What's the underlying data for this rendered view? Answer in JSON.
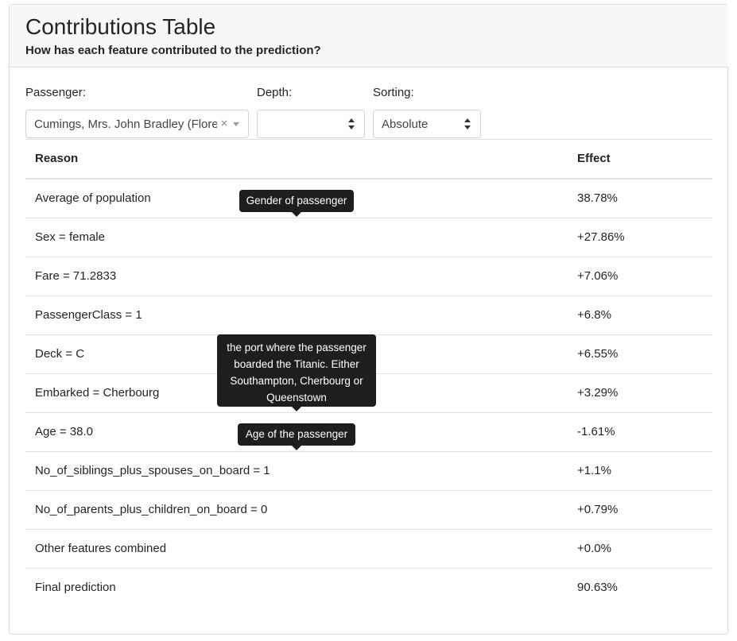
{
  "header": {
    "title": "Contributions Table",
    "subtitle": "How has each feature contributed to the prediction?"
  },
  "controls": [
    {
      "label": "Passenger:",
      "value": "Cumings, Mrs. John Bradley (Flore…"
    },
    {
      "label": "Depth:"
    },
    {
      "label": "Sorting:",
      "value": "Absolute"
    }
  ],
  "table": {
    "header": [
      "Reason",
      "Effect"
    ],
    "rows": [
      [
        "Average of population",
        "38.78%"
      ],
      [
        "Sex = female",
        "+27.86%"
      ],
      [
        "Fare = 71.2833",
        "+7.06%"
      ],
      [
        "PassengerClass = 1",
        "+6.8%"
      ],
      [
        "Deck = C",
        "+6.55%"
      ],
      [
        "Embarked = Cherbourg",
        "+3.29%"
      ],
      [
        "Age = 38.0",
        "-1.61%"
      ],
      [
        "No_of_siblings_plus_spouses_on_board = 1",
        "+1.1%"
      ],
      [
        "No_of_parents_plus_children_on_board = 0",
        "+0.79%"
      ],
      [
        "Other features combined",
        "+0.0%"
      ],
      [
        "Final prediction",
        "90.63%"
      ]
    ]
  },
  "tooltips": [
    "Gender of passenger",
    "the port where the passenger boarded the Titanic. Either Southampton, Cherbourg or Queenstown",
    "Age of the passenger"
  ]
}
